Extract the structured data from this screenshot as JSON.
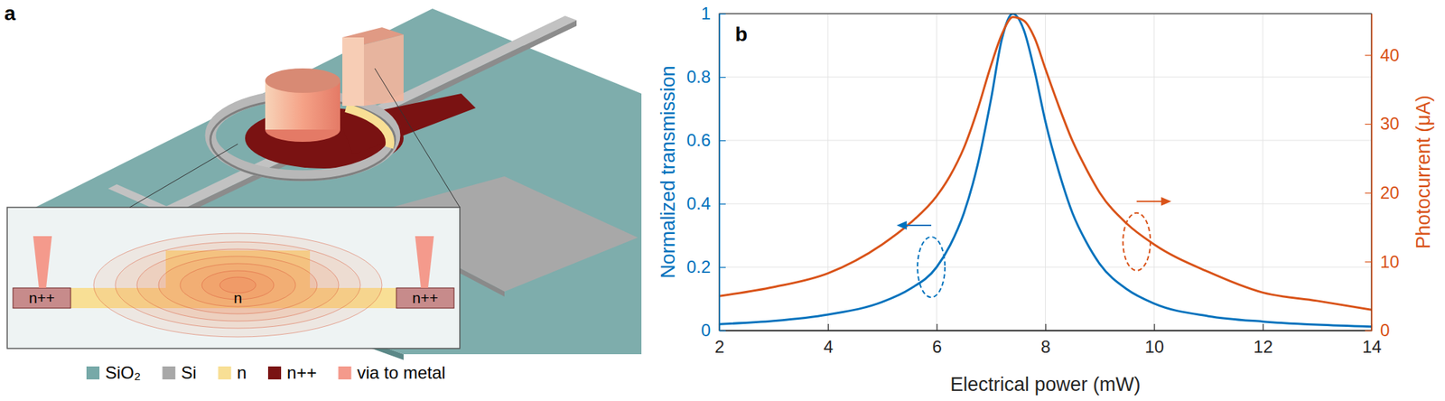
{
  "panel_a": {
    "label": "a",
    "inset_labels": [
      "n++",
      "n",
      "n++"
    ],
    "legend": [
      {
        "label": "SiO₂",
        "color": "#77a9a8"
      },
      {
        "label": "Si",
        "color": "#a8a8a8"
      },
      {
        "label": "n",
        "color": "#f8df95"
      },
      {
        "label": "n++",
        "color": "#7a1212"
      },
      {
        "label": "via to metal",
        "color": "#f49a8c"
      }
    ]
  },
  "chart_data": {
    "type": "line",
    "panel_label": "b",
    "xlabel": "Electrical power (mW)",
    "ylabel": "Normalized transmission",
    "y2label": "Photocurrent (μA)",
    "x": [
      2,
      3,
      4,
      5,
      5.5,
      6,
      6.25,
      6.5,
      6.75,
      7,
      7.2,
      7.4,
      7.6,
      7.8,
      8,
      8.25,
      8.5,
      8.75,
      9,
      9.5,
      10,
      11,
      12,
      13,
      14
    ],
    "series": [
      {
        "color": "#0072bd",
        "values": [
          0.02,
          0.03,
          0.05,
          0.09,
          0.13,
          0.2,
          0.27,
          0.37,
          0.52,
          0.73,
          0.92,
          1.0,
          0.95,
          0.82,
          0.66,
          0.5,
          0.37,
          0.28,
          0.21,
          0.13,
          0.085,
          0.045,
          0.028,
          0.018,
          0.012
        ]
      },
      {
        "color": "#d95319",
        "axis": "y2",
        "values": [
          5,
          6.3,
          8.3,
          12.5,
          15.5,
          19.5,
          22.5,
          26.5,
          32,
          38.5,
          43,
          45.5,
          45,
          42.5,
          38,
          32.5,
          27.5,
          23.5,
          20,
          15.5,
          12.5,
          8.5,
          5.5,
          4.3,
          3
        ]
      }
    ],
    "xlim": [
      2,
      14
    ],
    "xticks": [
      2,
      4,
      6,
      8,
      10,
      12,
      14
    ],
    "ylim": [
      0,
      1
    ],
    "yticks": [
      0,
      0.2,
      0.4,
      0.6,
      0.8,
      1
    ],
    "y2lim": [
      0,
      46
    ],
    "y2ticks": [
      0,
      10,
      20,
      30,
      40
    ],
    "grid": true
  }
}
